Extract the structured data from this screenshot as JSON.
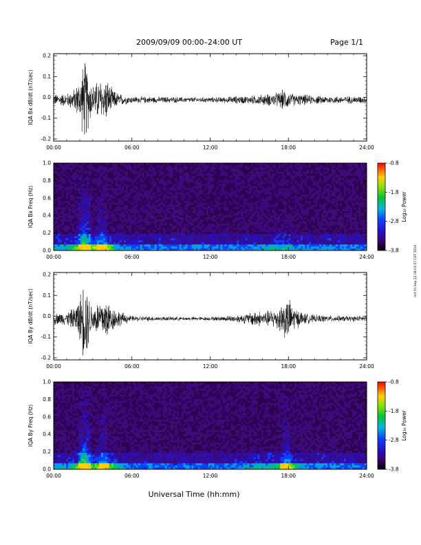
{
  "header": {
    "title": "2009/09/09  00:00–24:00 UT",
    "page": "Page 1/1"
  },
  "xaxis_label": "Universal Time (hh:mm)",
  "side_stamp": "rmf Fri Sep 22 08:01:57 CST 2019",
  "chart_data": [
    {
      "type": "line",
      "ylabel": "IQA Bx dB/dt (nT/sec)",
      "x_ticks": [
        "00:00",
        "06:00",
        "12:00",
        "18:00",
        "24:00"
      ],
      "y_ticks": [
        "-0.2",
        "-0.1",
        "0.0",
        "0.1",
        "0.2"
      ],
      "xlim_hours": [
        0,
        24
      ],
      "ylim": [
        -0.21,
        0.21
      ],
      "envelope": {
        "x_hours": [
          0,
          1,
          1.6,
          2.0,
          2.3,
          2.5,
          2.7,
          3.0,
          3.3,
          3.6,
          3.8,
          4.0,
          4.3,
          4.6,
          5.2,
          6,
          8,
          10,
          12,
          13,
          14,
          15,
          16,
          16.8,
          17.2,
          17.6,
          18,
          18.5,
          19.2,
          20,
          22,
          24
        ],
        "amplitude": [
          0.03,
          0.035,
          0.06,
          0.11,
          0.21,
          0.21,
          0.14,
          0.08,
          0.1,
          0.12,
          0.09,
          0.13,
          0.08,
          0.05,
          0.03,
          0.018,
          0.017,
          0.015,
          0.014,
          0.016,
          0.02,
          0.022,
          0.028,
          0.035,
          0.04,
          0.055,
          0.045,
          0.03,
          0.028,
          0.022,
          0.02,
          0.02
        ]
      }
    },
    {
      "type": "heatmap",
      "ylabel": "IQA Bx Freq (Hz)",
      "x_ticks": [
        "00:00",
        "06:00",
        "12:00",
        "18:00",
        "24:00"
      ],
      "y_ticks": [
        "0.0",
        "0.2",
        "0.4",
        "0.6",
        "0.8",
        "1.0"
      ],
      "xlim_hours": [
        0,
        24
      ],
      "ylim": [
        0,
        1.0
      ],
      "colorbar": {
        "label": "Log₁₀ Power",
        "ticks": [
          "-0.8",
          "-1.8",
          "-2.8",
          "-3.8"
        ],
        "range": [
          -3.8,
          -0.8
        ]
      }
    },
    {
      "type": "line",
      "ylabel": "IQA By dB/dt (nT/sec)",
      "x_ticks": [
        "00:00",
        "06:00",
        "12:00",
        "18:00",
        "24:00"
      ],
      "y_ticks": [
        "-0.2",
        "-0.1",
        "0.0",
        "0.1",
        "0.2"
      ],
      "xlim_hours": [
        0,
        24
      ],
      "ylim": [
        -0.21,
        0.21
      ],
      "envelope": {
        "x_hours": [
          0,
          1,
          1.6,
          2.0,
          2.3,
          2.5,
          2.7,
          3.0,
          3.3,
          3.6,
          3.8,
          4.0,
          4.3,
          4.6,
          5.2,
          6,
          8,
          10,
          12,
          13,
          14,
          15,
          15.5,
          16,
          16.8,
          17.2,
          17.6,
          18,
          18.5,
          19.2,
          20,
          22,
          24
        ],
        "amplitude": [
          0.03,
          0.035,
          0.06,
          0.12,
          0.21,
          0.21,
          0.13,
          0.07,
          0.09,
          0.11,
          0.1,
          0.13,
          0.08,
          0.06,
          0.035,
          0.015,
          0.012,
          0.01,
          0.01,
          0.013,
          0.02,
          0.03,
          0.05,
          0.035,
          0.05,
          0.06,
          0.1,
          0.11,
          0.06,
          0.03,
          0.02,
          0.015,
          0.015
        ]
      }
    },
    {
      "type": "heatmap",
      "ylabel": "IQA By Freq (Hz)",
      "x_ticks": [
        "00:00",
        "06:00",
        "12:00",
        "18:00",
        "24:00"
      ],
      "y_ticks": [
        "0.0",
        "0.2",
        "0.4",
        "0.6",
        "0.8",
        "1.0"
      ],
      "xlim_hours": [
        0,
        24
      ],
      "ylim": [
        0,
        1.0
      ],
      "colorbar": {
        "label": "Log₁₀ Power",
        "ticks": [
          "-0.8",
          "-1.8",
          "-2.8",
          "-3.8"
        ],
        "range": [
          -3.8,
          -0.8
        ]
      }
    }
  ]
}
